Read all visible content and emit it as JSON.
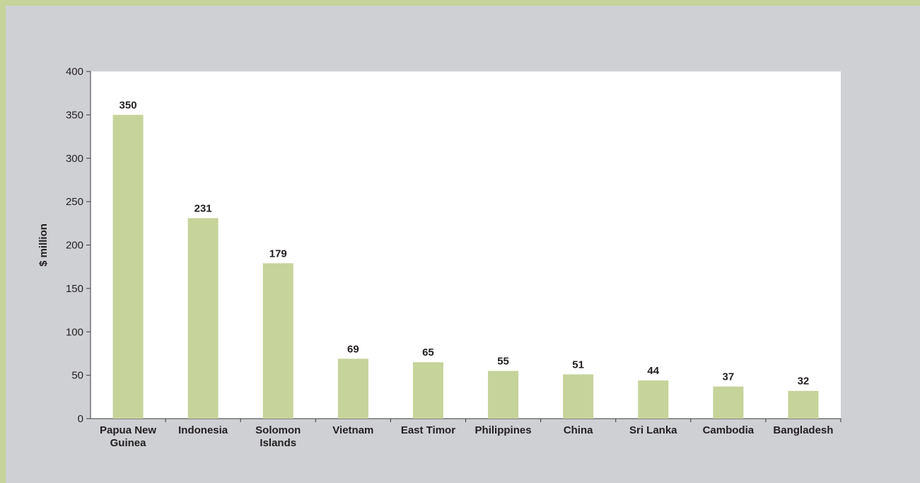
{
  "chart_data": {
    "type": "bar",
    "categories": [
      "Papua New Guinea",
      "Indonesia",
      "Solomon Islands",
      "Vietnam",
      "East Timor",
      "Philippines",
      "China",
      "Sri Lanka",
      "Cambodia",
      "Bangladesh"
    ],
    "category_lines": [
      [
        "Papua New",
        "Guinea"
      ],
      [
        "Indonesia"
      ],
      [
        "Solomon",
        "Islands"
      ],
      [
        "Vietnam"
      ],
      [
        "East Timor"
      ],
      [
        "Philippines"
      ],
      [
        "China"
      ],
      [
        "Sri Lanka"
      ],
      [
        "Cambodia"
      ],
      [
        "Bangladesh"
      ]
    ],
    "values": [
      350,
      231,
      179,
      69,
      65,
      55,
      51,
      44,
      37,
      32
    ],
    "value_labels": [
      "350",
      "231",
      "179",
      "69",
      "65",
      "55",
      "51",
      "44",
      "37",
      "32"
    ],
    "title": "",
    "xlabel": "",
    "ylabel": "$ million",
    "ylim": [
      0,
      400
    ],
    "yticks": [
      0,
      50,
      100,
      150,
      200,
      250,
      300,
      350,
      400
    ],
    "ytick_labels": [
      "0",
      "50",
      "100",
      "150",
      "200",
      "250",
      "300",
      "350",
      "400"
    ],
    "grid": false,
    "legend": "none",
    "colors": {
      "bar": "#c6d39a",
      "page_border": "#c6d39a",
      "background": "#cfd0d4",
      "plot_area": "#ffffff",
      "text": "#231f20",
      "axis": "#3a3a3a"
    }
  }
}
